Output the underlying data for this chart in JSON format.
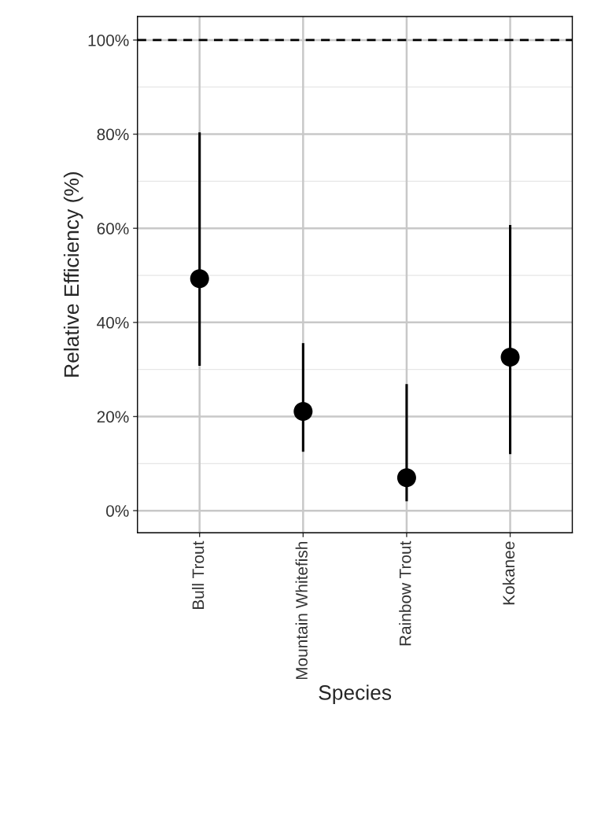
{
  "chart_data": {
    "type": "scatter",
    "xlabel": "Species",
    "ylabel": "Relative Efficiency (%)",
    "categories": [
      "Bull Trout",
      "Mountain Whitefish",
      "Rainbow Trout",
      "Kokanee"
    ],
    "values": [
      49.3,
      21.1,
      7.0,
      32.6
    ],
    "errors": [
      [
        30.8,
        80.4
      ],
      [
        12.5,
        35.6
      ],
      [
        2.0,
        26.9
      ],
      [
        12.0,
        60.7
      ]
    ],
    "color": "#000000",
    "marker": "circle",
    "ylim": [
      -4.7,
      105
    ],
    "yticks": [
      {
        "value": 0,
        "label": "0%"
      },
      {
        "value": 20,
        "label": "20%"
      },
      {
        "value": 40,
        "label": "40%"
      },
      {
        "value": 60,
        "label": "60%"
      },
      {
        "value": 80,
        "label": "80%"
      },
      {
        "value": 100,
        "label": "100%"
      }
    ],
    "ref_lines": [
      {
        "axis": "y",
        "value": 100,
        "label": null,
        "color": "#000000",
        "line_style": "dashed"
      }
    ],
    "grid": true
  }
}
